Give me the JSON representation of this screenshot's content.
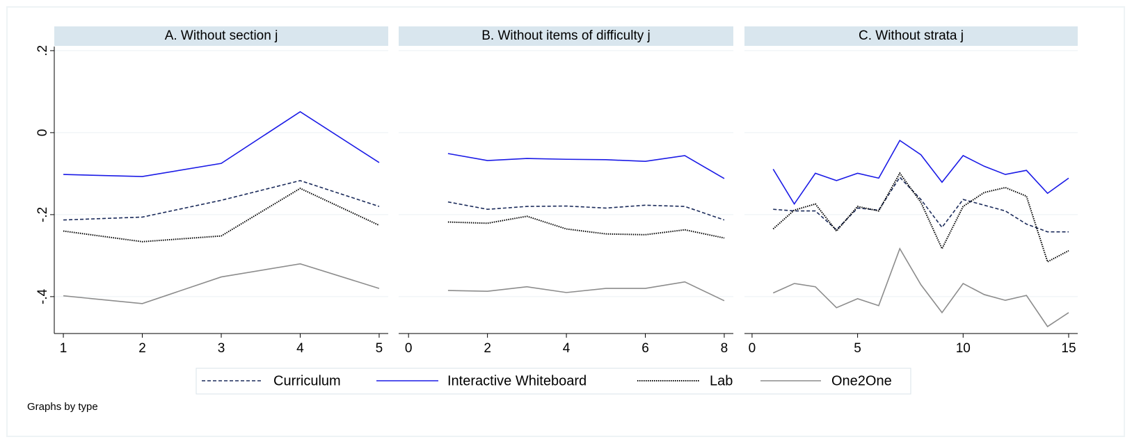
{
  "chart_data": [
    {
      "type": "line",
      "title": "A. Without section j",
      "x": [
        1,
        2,
        3,
        4,
        5
      ],
      "xlim": [
        0.885,
        5.115
      ],
      "xticks": [
        1,
        2,
        3,
        4,
        5
      ],
      "ylim": [
        -0.49,
        0.21
      ],
      "yticks": [
        {
          "value": -0.4,
          "label": "-.4"
        },
        {
          "value": -0.2,
          "label": "-.2"
        },
        0,
        {
          "value": 0.2,
          "label": ".2"
        }
      ],
      "grid": true,
      "series": [
        {
          "name": "Curriculum",
          "color": "#1a2a5a",
          "style": "dashed",
          "values": [
            -0.213,
            -0.206,
            -0.165,
            -0.117,
            -0.18
          ]
        },
        {
          "name": "Interactive Whiteboard",
          "color": "#1a1ae6",
          "style": "solid",
          "values": [
            -0.102,
            -0.107,
            -0.075,
            0.051,
            -0.073
          ]
        },
        {
          "name": "Lab",
          "color": "#000000",
          "style": "dotted",
          "values": [
            -0.24,
            -0.266,
            -0.252,
            -0.136,
            -0.226
          ]
        },
        {
          "name": "One2One",
          "color": "#8c8c8c",
          "style": "solid",
          "values": [
            -0.398,
            -0.417,
            -0.352,
            -0.32,
            -0.38
          ]
        }
      ]
    },
    {
      "type": "line",
      "title": "B. Without items of difficulty j",
      "x": [
        1,
        2,
        3,
        4,
        5,
        6,
        7,
        8
      ],
      "xlim": [
        -0.25,
        8.23
      ],
      "xticks": [
        0,
        2,
        4,
        6,
        8
      ],
      "ylim": [
        -0.49,
        0.21
      ],
      "yticks": [
        {
          "value": -0.4,
          "label": "-.4"
        },
        {
          "value": -0.2,
          "label": "-.2"
        },
        0,
        {
          "value": 0.2,
          "label": ".2"
        }
      ],
      "grid": true,
      "series": [
        {
          "name": "Curriculum",
          "color": "#1a2a5a",
          "style": "dashed",
          "values": [
            -0.169,
            -0.187,
            -0.18,
            -0.179,
            -0.184,
            -0.177,
            -0.18,
            -0.213
          ]
        },
        {
          "name": "Interactive Whiteboard",
          "color": "#1a1ae6",
          "style": "solid",
          "values": [
            -0.051,
            -0.068,
            -0.063,
            -0.065,
            -0.066,
            -0.07,
            -0.056,
            -0.112
          ]
        },
        {
          "name": "Lab",
          "color": "#000000",
          "style": "dotted",
          "values": [
            -0.218,
            -0.221,
            -0.204,
            -0.235,
            -0.247,
            -0.249,
            -0.237,
            -0.257
          ]
        },
        {
          "name": "One2One",
          "color": "#8c8c8c",
          "style": "solid",
          "values": [
            -0.385,
            -0.387,
            -0.376,
            -0.39,
            -0.38,
            -0.38,
            -0.364,
            -0.41
          ]
        }
      ]
    },
    {
      "type": "line",
      "title": "C. Without strata j",
      "x": [
        1,
        2,
        3,
        4,
        5,
        6,
        7,
        8,
        9,
        10,
        11,
        12,
        13,
        14,
        15
      ],
      "xlim": [
        -0.36,
        15.43
      ],
      "xticks": [
        0,
        5,
        10,
        15
      ],
      "ylim": [
        -0.49,
        0.21
      ],
      "yticks": [
        {
          "value": -0.4,
          "label": "-.4"
        },
        {
          "value": -0.2,
          "label": "-.2"
        },
        0,
        {
          "value": 0.2,
          "label": ".2"
        }
      ],
      "grid": true,
      "series": [
        {
          "name": "Curriculum",
          "color": "#1a2a5a",
          "style": "dashed",
          "values": [
            -0.187,
            -0.191,
            -0.191,
            -0.237,
            -0.184,
            -0.189,
            -0.109,
            -0.163,
            -0.231,
            -0.163,
            -0.177,
            -0.191,
            -0.223,
            -0.242,
            -0.242
          ]
        },
        {
          "name": "Interactive Whiteboard",
          "color": "#1a1ae6",
          "style": "solid",
          "values": [
            -0.089,
            -0.174,
            -0.099,
            -0.117,
            -0.099,
            -0.111,
            -0.019,
            -0.054,
            -0.121,
            -0.056,
            -0.082,
            -0.102,
            -0.092,
            -0.148,
            -0.111
          ]
        },
        {
          "name": "Lab",
          "color": "#000000",
          "style": "dotted",
          "values": [
            -0.235,
            -0.189,
            -0.174,
            -0.24,
            -0.18,
            -0.191,
            -0.099,
            -0.17,
            -0.283,
            -0.18,
            -0.146,
            -0.134,
            -0.155,
            -0.315,
            -0.288
          ]
        },
        {
          "name": "One2One",
          "color": "#8c8c8c",
          "style": "solid",
          "values": [
            -0.391,
            -0.368,
            -0.376,
            -0.427,
            -0.405,
            -0.422,
            -0.283,
            -0.371,
            -0.439,
            -0.368,
            -0.395,
            -0.409,
            -0.397,
            -0.473,
            -0.439
          ]
        }
      ]
    }
  ],
  "note": "Graphs by type"
}
